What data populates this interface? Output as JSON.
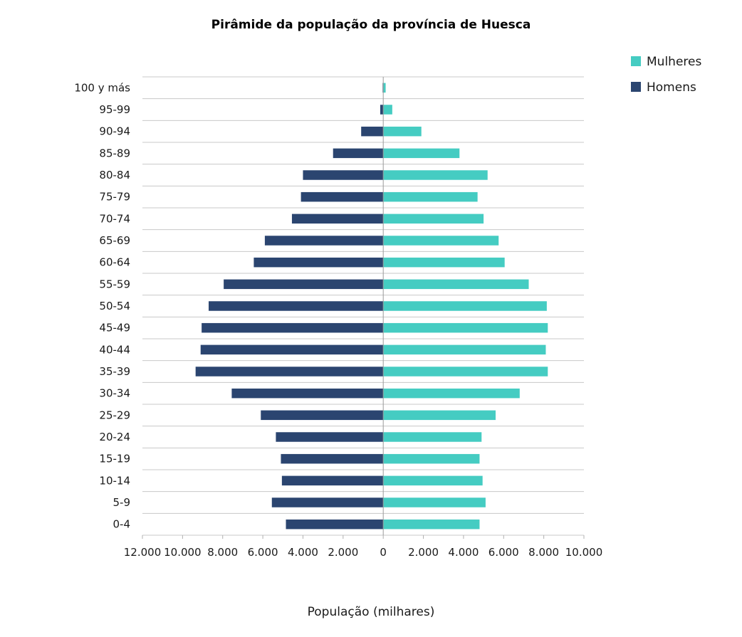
{
  "chart_data": {
    "type": "bar",
    "orientation": "horizontal",
    "title": "Pirâmide da população da província de Huesca",
    "xlabel": "População (milhares)",
    "ylabel": "",
    "categories": [
      "0-4",
      "5-9",
      "10-14",
      "15-19",
      "20-24",
      "25-29",
      "30-34",
      "35-39",
      "40-44",
      "45-49",
      "50-54",
      "55-59",
      "60-64",
      "65-69",
      "70-74",
      "75-79",
      "80-84",
      "85-89",
      "90-94",
      "95-99",
      "100 y más"
    ],
    "series": [
      {
        "name": "Mulheres",
        "color": "#45ccc2",
        "values": [
          4800,
          5100,
          4950,
          4800,
          4900,
          5600,
          6800,
          8200,
          8100,
          8200,
          8150,
          7250,
          6050,
          5750,
          5000,
          4700,
          5200,
          3800,
          1900,
          450,
          120
        ]
      },
      {
        "name": "Homens",
        "color": "#2b4570",
        "values": [
          4850,
          5550,
          5050,
          5100,
          5350,
          6100,
          7550,
          9350,
          9100,
          9050,
          8700,
          7950,
          6450,
          5900,
          4550,
          4100,
          4000,
          2500,
          1100,
          150,
          30
        ]
      }
    ],
    "xlim": [
      -12000,
      10000
    ],
    "xticks": [
      -12000,
      -10000,
      -8000,
      -6000,
      -4000,
      -2000,
      0,
      2000,
      4000,
      6000,
      8000,
      10000
    ],
    "xtick_labels": [
      "12.000",
      "10.000",
      "8.000",
      "6.000",
      "4.000",
      "2.000",
      "0",
      "2.000",
      "4.000",
      "6.000",
      "8.000",
      "10.000"
    ],
    "grid": true,
    "legend_position": "top-right"
  }
}
